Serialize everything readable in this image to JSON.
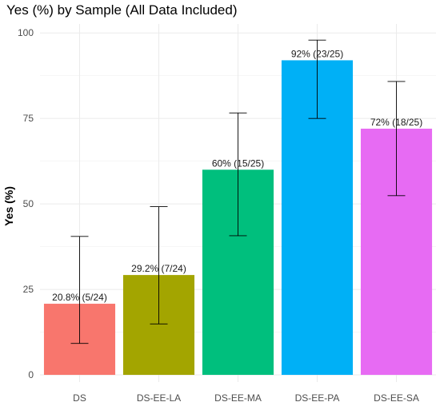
{
  "chart_data": {
    "type": "bar",
    "title": "Yes (%) by Sample (All Data Included)",
    "xlabel": "",
    "ylabel": "Yes (%)",
    "ylim": [
      0,
      100
    ],
    "yticks": [
      "0",
      "25",
      "50",
      "75",
      "100"
    ],
    "grid": true,
    "legend": "none",
    "categories": [
      "DS",
      "DS-EE-LA",
      "DS-EE-MA",
      "DS-EE-PA",
      "DS-EE-SA"
    ],
    "values": [
      20.8,
      29.2,
      60,
      92,
      72
    ],
    "error_low": [
      9.2,
      14.9,
      40.7,
      75.0,
      52.4
    ],
    "error_high": [
      40.5,
      49.2,
      76.6,
      97.9,
      85.8
    ],
    "labels": [
      "20.8% (5/24)",
      "29.2% (7/24)",
      "60% (15/25)",
      "92% (23/25)",
      "72% (18/25)"
    ],
    "colors": [
      "#F8766D",
      "#A3A500",
      "#00BF7D",
      "#00B0F6",
      "#E76BF3"
    ]
  }
}
